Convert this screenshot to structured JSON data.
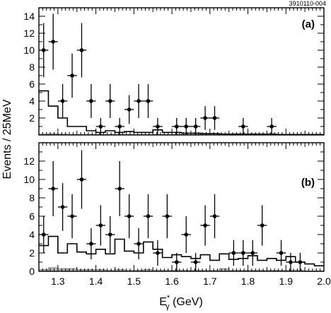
{
  "figure_id": "3910110-004",
  "y_axis_label": "Events / 25MeV",
  "x_axis_label_main": "E",
  "x_axis_label_sub": "γ",
  "x_axis_label_sup": "*",
  "x_axis_label_unit": " (GeV)",
  "chart_data": [
    {
      "type": "scatter",
      "panel_label": "(a)",
      "xlim": [
        1.25,
        2.0
      ],
      "ylim": [
        0,
        15
      ],
      "x_ticks": [
        1.3,
        1.4,
        1.5,
        1.6,
        1.7,
        1.8,
        1.9,
        2.0
      ],
      "y_ticks": [
        2,
        4,
        6,
        8,
        10,
        12,
        14
      ],
      "points": [
        {
          "x": 1.2625,
          "y": 10,
          "err": 3.2
        },
        {
          "x": 1.2875,
          "y": 11,
          "err": 3.3
        },
        {
          "x": 1.3125,
          "y": 4,
          "err": 2.0
        },
        {
          "x": 1.3375,
          "y": 7,
          "err": 2.6
        },
        {
          "x": 1.3625,
          "y": 10,
          "err": 3.2
        },
        {
          "x": 1.3875,
          "y": 4,
          "err": 2.0
        },
        {
          "x": 1.4125,
          "y": 1,
          "err": 1.0
        },
        {
          "x": 1.4375,
          "y": 4,
          "err": 2.0
        },
        {
          "x": 1.4625,
          "y": 1,
          "err": 1.0
        },
        {
          "x": 1.4875,
          "y": 3,
          "err": 1.7
        },
        {
          "x": 1.5125,
          "y": 4,
          "err": 2.0
        },
        {
          "x": 1.5375,
          "y": 4,
          "err": 2.0
        },
        {
          "x": 1.5625,
          "y": 1,
          "err": 1.0
        },
        {
          "x": 1.6125,
          "y": 1,
          "err": 1.0
        },
        {
          "x": 1.6375,
          "y": 1,
          "err": 1.0
        },
        {
          "x": 1.6625,
          "y": 1,
          "err": 1.0
        },
        {
          "x": 1.6875,
          "y": 2,
          "err": 1.4
        },
        {
          "x": 1.7125,
          "y": 2,
          "err": 1.4
        },
        {
          "x": 1.7875,
          "y": 1,
          "err": 1.0
        },
        {
          "x": 1.8625,
          "y": 1,
          "err": 1.0
        }
      ],
      "histogram": [
        5.2,
        3.4,
        2.0,
        1.0,
        1.0,
        0.5,
        0.3,
        0.5,
        0.3,
        0.4,
        0.3,
        0.3,
        0.6,
        0.3,
        0.3,
        0.2,
        0.2,
        0.15,
        0.15,
        0.1,
        0.1,
        0.1,
        0.1,
        0.1,
        0.1,
        0.05,
        0.05,
        0.05,
        0.05,
        0.05
      ],
      "gray_histogram": [
        0.1,
        0.15,
        0.1,
        0.05,
        0.05,
        0.05,
        0.05,
        0.05,
        0.05,
        0.05,
        0.05,
        0.05,
        0.05,
        0.05,
        0.05,
        0.05,
        0.05,
        0.0,
        0.0,
        0.0,
        0.0,
        0.0,
        0.0,
        0.0,
        0.0,
        0.0,
        0.0,
        0.0,
        0.0,
        0.0
      ],
      "bin_start": 1.25,
      "bin_width": 0.025
    },
    {
      "type": "scatter",
      "panel_label": "(b)",
      "xlim": [
        1.25,
        2.0
      ],
      "ylim": [
        0,
        14
      ],
      "x_ticks": [
        1.3,
        1.4,
        1.5,
        1.6,
        1.7,
        1.8,
        1.9,
        2.0
      ],
      "x_tick_labels": [
        "1.3",
        "1.4",
        "1.5",
        "1.6",
        "1.7",
        "1.8",
        "1.9",
        "2.0"
      ],
      "y_ticks": [
        0,
        2,
        4,
        6,
        8,
        10,
        12
      ],
      "points": [
        {
          "x": 1.2625,
          "y": 4,
          "err": 2.0
        },
        {
          "x": 1.2875,
          "y": 9,
          "err": 3.0
        },
        {
          "x": 1.3125,
          "y": 7,
          "err": 2.6
        },
        {
          "x": 1.3375,
          "y": 6,
          "err": 2.4
        },
        {
          "x": 1.3625,
          "y": 10,
          "err": 3.2
        },
        {
          "x": 1.3875,
          "y": 3,
          "err": 1.7
        },
        {
          "x": 1.4125,
          "y": 5,
          "err": 2.2
        },
        {
          "x": 1.4375,
          "y": 4,
          "err": 2.0
        },
        {
          "x": 1.4625,
          "y": 9,
          "err": 3.0
        },
        {
          "x": 1.4875,
          "y": 6,
          "err": 2.4
        },
        {
          "x": 1.5125,
          "y": 3,
          "err": 1.7
        },
        {
          "x": 1.5375,
          "y": 6,
          "err": 2.4
        },
        {
          "x": 1.5625,
          "y": 2,
          "err": 1.4
        },
        {
          "x": 1.5875,
          "y": 6,
          "err": 2.4
        },
        {
          "x": 1.6125,
          "y": 1,
          "err": 1.0
        },
        {
          "x": 1.6375,
          "y": 4,
          "err": 2.0
        },
        {
          "x": 1.6625,
          "y": 1,
          "err": 1.0
        },
        {
          "x": 1.6875,
          "y": 5,
          "err": 2.2
        },
        {
          "x": 1.7125,
          "y": 6,
          "err": 2.4
        },
        {
          "x": 1.7625,
          "y": 2,
          "err": 1.4
        },
        {
          "x": 1.7875,
          "y": 2,
          "err": 1.4
        },
        {
          "x": 1.8125,
          "y": 2,
          "err": 1.4
        },
        {
          "x": 1.8375,
          "y": 5,
          "err": 2.2
        },
        {
          "x": 1.8875,
          "y": 2,
          "err": 1.4
        },
        {
          "x": 1.9125,
          "y": 1,
          "err": 1.0
        },
        {
          "x": 1.9375,
          "y": 1,
          "err": 1.0
        }
      ],
      "histogram": [
        2.8,
        3.8,
        2.0,
        3.0,
        2.1,
        1.9,
        2.4,
        1.9,
        3.5,
        2.2,
        2.0,
        3.2,
        2.4,
        1.5,
        1.8,
        1.6,
        1.4,
        1.8,
        1.2,
        1.9,
        1.3,
        1.4,
        1.7,
        1.2,
        1.4,
        1.2,
        1.6,
        1.0,
        0.8,
        0.6
      ],
      "gray_histogram": [
        0.2,
        0.4,
        0.3,
        0.3,
        0.2,
        0.2,
        0.2,
        0.1,
        0.2,
        0.1,
        0.1,
        0.2,
        0.1,
        0.1,
        0.1,
        0.1,
        0.1,
        0.1,
        0.1,
        0.3,
        0.1,
        0.1,
        0.1,
        0.1,
        0.1,
        0.1,
        0.1,
        0.1,
        0.05,
        0.05
      ],
      "bin_start": 1.25,
      "bin_width": 0.025
    }
  ]
}
